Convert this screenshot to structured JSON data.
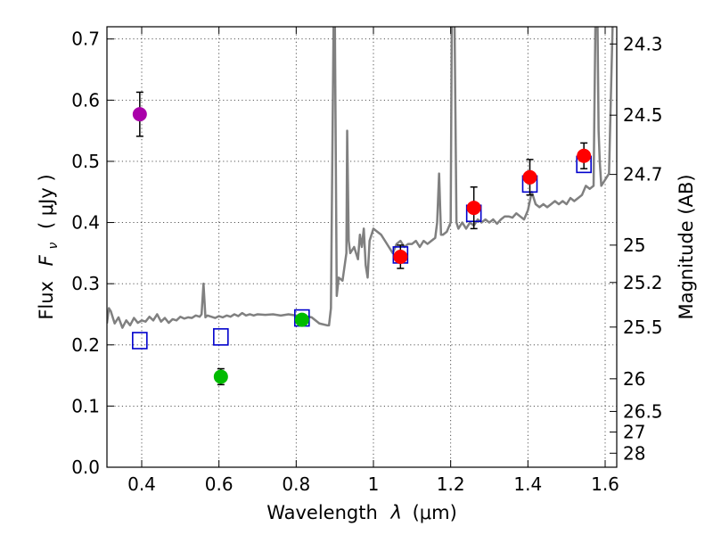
{
  "chart_data": {
    "type": "scatter",
    "xlabel_text": "Wavelength",
    "xlabel_symbol": "λ",
    "xlabel_unit": "(μm)",
    "ylabel_text": "Flux",
    "ylabel_symbol_main": "F",
    "ylabel_symbol_sub": "ν",
    "ylabel_unit": "( μJy )",
    "y2label": "Magnitude (AB)",
    "xlim": [
      0.31,
      1.63
    ],
    "ylim": [
      0.0,
      0.72
    ],
    "x_ticks": [
      0.4,
      0.6,
      0.8,
      1.0,
      1.2,
      1.4,
      1.6
    ],
    "x_tick_labels": [
      "0.4",
      "0.6",
      "0.8",
      "1",
      "1.2",
      "1.4",
      "1.6"
    ],
    "y_ticks": [
      0.0,
      0.1,
      0.2,
      0.3,
      0.4,
      0.5,
      0.6,
      0.7
    ],
    "y_tick_labels": [
      "0.0",
      "0.1",
      "0.2",
      "0.3",
      "0.4",
      "0.5",
      "0.6",
      "0.7"
    ],
    "y2_ticks": [
      {
        "label": "24.3",
        "mag": 24.3
      },
      {
        "label": "24.5",
        "mag": 24.5
      },
      {
        "label": "24.7",
        "mag": 24.7
      },
      {
        "label": "25",
        "mag": 25.0
      },
      {
        "label": "25.2",
        "mag": 25.2
      },
      {
        "label": "25.5",
        "mag": 25.5
      },
      {
        "label": "26",
        "mag": 26.0
      },
      {
        "label": "26.5",
        "mag": 26.5
      },
      {
        "label": "27",
        "mag": 27.0
      },
      {
        "label": "28",
        "mag": 28.0
      }
    ],
    "grid": true,
    "colors": {
      "model_line": "#808080",
      "model_box": "#0000cc",
      "purple": "#aa00aa",
      "green": "#00bb00",
      "red": "#ff0000",
      "errorbar": "#000000"
    },
    "observed": [
      {
        "name": "purple",
        "x": 0.395,
        "y": 0.577,
        "err": 0.036
      },
      {
        "name": "green",
        "x": 0.605,
        "y": 0.148,
        "err": 0.013
      },
      {
        "name": "green",
        "x": 0.815,
        "y": 0.241,
        "err": 0.007
      },
      {
        "name": "red",
        "x": 1.07,
        "y": 0.344,
        "err": 0.019
      },
      {
        "name": "red",
        "x": 1.26,
        "y": 0.424,
        "err": 0.034
      },
      {
        "name": "red",
        "x": 1.405,
        "y": 0.474,
        "err": 0.029
      },
      {
        "name": "red",
        "x": 1.545,
        "y": 0.509,
        "err": 0.021
      }
    ],
    "model_photometry": [
      {
        "x": 0.395,
        "y": 0.207
      },
      {
        "x": 0.605,
        "y": 0.213
      },
      {
        "x": 0.815,
        "y": 0.244
      },
      {
        "x": 1.07,
        "y": 0.347
      },
      {
        "x": 1.26,
        "y": 0.415
      },
      {
        "x": 1.405,
        "y": 0.463
      },
      {
        "x": 1.545,
        "y": 0.495
      }
    ],
    "spectrum": {
      "x": [
        0.31,
        0.315,
        0.32,
        0.33,
        0.34,
        0.35,
        0.36,
        0.37,
        0.38,
        0.39,
        0.4,
        0.41,
        0.42,
        0.43,
        0.44,
        0.45,
        0.46,
        0.47,
        0.48,
        0.49,
        0.5,
        0.51,
        0.52,
        0.53,
        0.54,
        0.55,
        0.555,
        0.56,
        0.565,
        0.57,
        0.58,
        0.59,
        0.6,
        0.61,
        0.62,
        0.63,
        0.64,
        0.65,
        0.66,
        0.67,
        0.68,
        0.69,
        0.7,
        0.72,
        0.74,
        0.76,
        0.78,
        0.8,
        0.82,
        0.84,
        0.86,
        0.88,
        0.885,
        0.89,
        0.892,
        0.895,
        0.897,
        0.9,
        0.905,
        0.91,
        0.92,
        0.93,
        0.932,
        0.936,
        0.94,
        0.95,
        0.96,
        0.965,
        0.97,
        0.975,
        0.98,
        0.985,
        0.99,
        1.0,
        1.01,
        1.02,
        1.03,
        1.04,
        1.05,
        1.06,
        1.07,
        1.08,
        1.09,
        1.1,
        1.11,
        1.12,
        1.13,
        1.14,
        1.15,
        1.16,
        1.165,
        1.17,
        1.175,
        1.18,
        1.19,
        1.2,
        1.203,
        1.206,
        1.21,
        1.215,
        1.22,
        1.23,
        1.24,
        1.25,
        1.26,
        1.27,
        1.28,
        1.29,
        1.3,
        1.31,
        1.32,
        1.33,
        1.34,
        1.35,
        1.36,
        1.37,
        1.38,
        1.39,
        1.4,
        1.41,
        1.42,
        1.43,
        1.44,
        1.45,
        1.46,
        1.47,
        1.48,
        1.49,
        1.5,
        1.51,
        1.52,
        1.53,
        1.54,
        1.55,
        1.56,
        1.57,
        1.575,
        1.58,
        1.583,
        1.586,
        1.59,
        1.6,
        1.61,
        1.62,
        1.63
      ],
      "y": [
        0.235,
        0.26,
        0.255,
        0.235,
        0.245,
        0.228,
        0.24,
        0.232,
        0.244,
        0.236,
        0.24,
        0.238,
        0.246,
        0.24,
        0.25,
        0.238,
        0.244,
        0.236,
        0.242,
        0.24,
        0.246,
        0.243,
        0.245,
        0.244,
        0.248,
        0.246,
        0.25,
        0.3,
        0.245,
        0.248,
        0.246,
        0.244,
        0.247,
        0.245,
        0.248,
        0.246,
        0.25,
        0.247,
        0.252,
        0.248,
        0.25,
        0.248,
        0.25,
        0.249,
        0.25,
        0.248,
        0.25,
        0.248,
        0.247,
        0.245,
        0.235,
        0.232,
        0.232,
        0.26,
        0.4,
        0.6,
        0.74,
        0.74,
        0.28,
        0.31,
        0.305,
        0.35,
        0.55,
        0.37,
        0.35,
        0.36,
        0.34,
        0.38,
        0.36,
        0.39,
        0.33,
        0.31,
        0.37,
        0.39,
        0.385,
        0.38,
        0.37,
        0.36,
        0.35,
        0.365,
        0.37,
        0.36,
        0.365,
        0.365,
        0.37,
        0.36,
        0.37,
        0.365,
        0.37,
        0.375,
        0.4,
        0.48,
        0.38,
        0.38,
        0.385,
        0.4,
        0.74,
        0.74,
        0.73,
        0.4,
        0.39,
        0.4,
        0.39,
        0.4,
        0.395,
        0.405,
        0.4,
        0.405,
        0.4,
        0.405,
        0.398,
        0.405,
        0.41,
        0.41,
        0.408,
        0.415,
        0.41,
        0.405,
        0.42,
        0.45,
        0.43,
        0.425,
        0.43,
        0.425,
        0.43,
        0.435,
        0.43,
        0.435,
        0.43,
        0.44,
        0.435,
        0.44,
        0.445,
        0.46,
        0.455,
        0.46,
        0.74,
        0.74,
        0.55,
        0.5,
        0.46,
        0.47,
        0.48,
        0.74,
        0.74
      ]
    }
  }
}
